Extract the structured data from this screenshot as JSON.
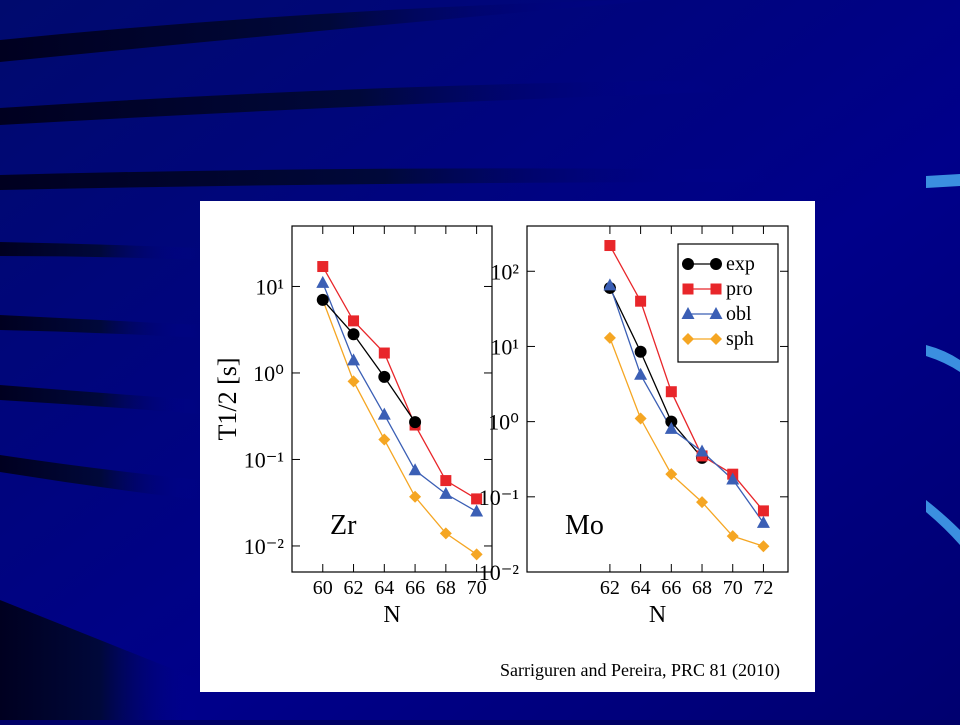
{
  "chart_data": [
    {
      "type": "line",
      "log_y": true,
      "y_label": "T1/2 [s]",
      "x_label": "N",
      "annotation": "Zr",
      "x": [
        60,
        62,
        64,
        66,
        68,
        70
      ],
      "xlim": [
        58,
        71
      ],
      "xticks": [
        60,
        62,
        64,
        66,
        68,
        70
      ],
      "ylim": [
        0.005,
        50
      ],
      "yticks": [
        {
          "value": 0.01,
          "label": "10⁻²"
        },
        {
          "value": 0.1,
          "label": "10⁻¹"
        },
        {
          "value": 1,
          "label": "10⁰"
        },
        {
          "value": 10,
          "label": "10¹"
        }
      ],
      "series": [
        {
          "color": "#e8262a",
          "marker": "square",
          "values": [
            17,
            4,
            1.7,
            0.25,
            0.057,
            0.035
          ]
        },
        {
          "color": "#3b5fb5",
          "marker": "triangle",
          "values": [
            11,
            1.4,
            0.33,
            0.075,
            0.04,
            0.025
          ]
        },
        {
          "color": "#f5a623",
          "marker": "diamond",
          "values": [
            7,
            0.8,
            0.17,
            0.037,
            0.014,
            0.008
          ]
        },
        {
          "color": "#000000",
          "marker": "circle",
          "values": [
            7,
            2.8,
            0.9,
            0.27,
            null,
            null
          ]
        }
      ]
    },
    {
      "type": "line",
      "log_y": true,
      "x_label": "N",
      "annotation": "Mo",
      "legend": "upper right",
      "x": [
        62,
        64,
        66,
        68,
        70,
        72
      ],
      "xlim": [
        56.6,
        73.6
      ],
      "xticks": [
        62,
        64,
        66,
        68,
        70,
        72
      ],
      "ylim": [
        0.01,
        400
      ],
      "yticks": [
        {
          "value": 0.01,
          "label": "10⁻²"
        },
        {
          "value": 0.1,
          "label": "10⁻¹"
        },
        {
          "value": 1,
          "label": "10⁰"
        },
        {
          "value": 10,
          "label": "10¹"
        },
        {
          "value": 100,
          "label": "10²"
        }
      ],
      "series": [
        {
          "name": "exp",
          "color": "#000000",
          "marker": "circle",
          "values": [
            60,
            8.5,
            1.0,
            0.33,
            null,
            null
          ]
        },
        {
          "name": "pro",
          "color": "#e8262a",
          "marker": "square",
          "values": [
            220,
            40,
            2.5,
            0.35,
            0.2,
            0.065
          ]
        },
        {
          "name": "obl",
          "color": "#3b5fb5",
          "marker": "triangle",
          "values": [
            65,
            4.2,
            0.8,
            0.4,
            0.17,
            0.045
          ]
        },
        {
          "name": "sph",
          "color": "#f5a623",
          "marker": "diamond",
          "values": [
            13,
            1.1,
            0.2,
            0.085,
            0.03,
            0.022
          ]
        }
      ]
    }
  ],
  "source": "Sarriguren and Pereira,  PRC 81 (2010)"
}
